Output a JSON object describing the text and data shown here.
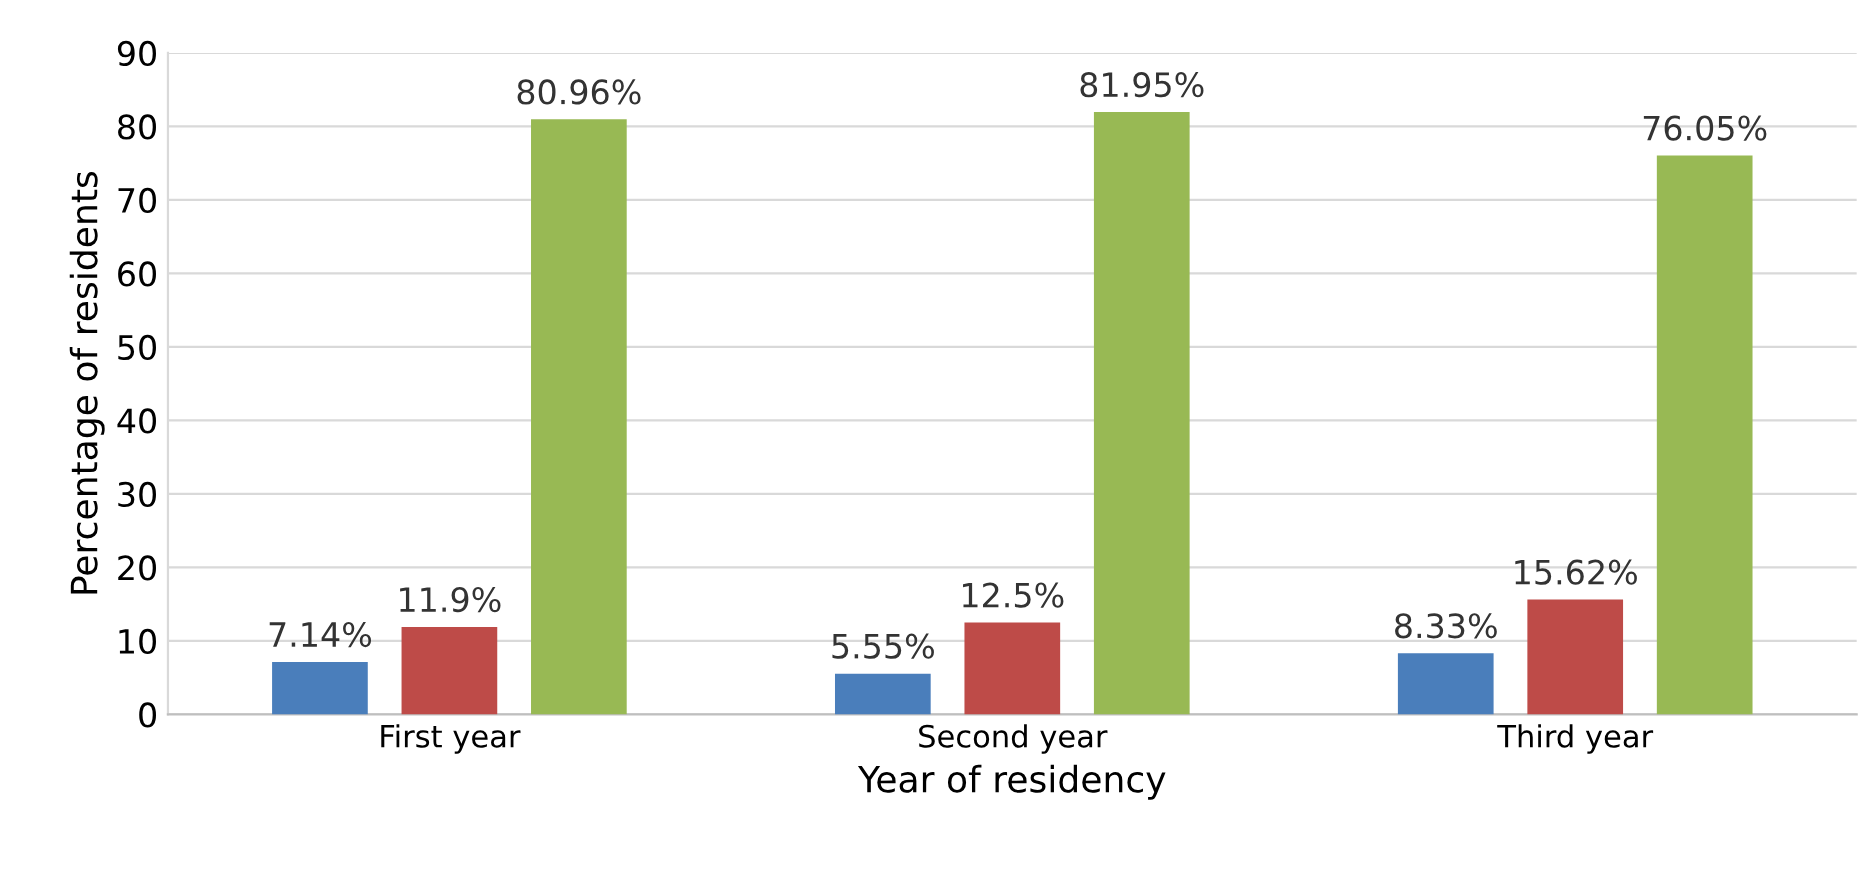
{
  "chart_data": {
    "type": "bar",
    "xlabel": "Year of residency",
    "ylabel": "Percentage of residents",
    "categories": [
      "First year",
      "Second year",
      "Third year"
    ],
    "series": [
      {
        "color": "#4a7ebb",
        "values": [
          7.14,
          5.55,
          8.33
        ],
        "value_labels": [
          "7.14%",
          "5.55%",
          "8.33%"
        ]
      },
      {
        "color": "#be4b48",
        "values": [
          11.9,
          12.5,
          15.62
        ],
        "value_labels": [
          "11.9%",
          "12.5%",
          "15.62%"
        ]
      },
      {
        "color": "#98b954",
        "values": [
          80.96,
          81.95,
          76.05
        ],
        "value_labels": [
          "80.96%",
          "81.95%",
          "76.05%"
        ]
      }
    ],
    "ylim": [
      0,
      90
    ],
    "yticks": [
      0,
      10,
      20,
      30,
      40,
      50,
      60,
      70,
      80,
      90
    ],
    "grid": "y"
  }
}
